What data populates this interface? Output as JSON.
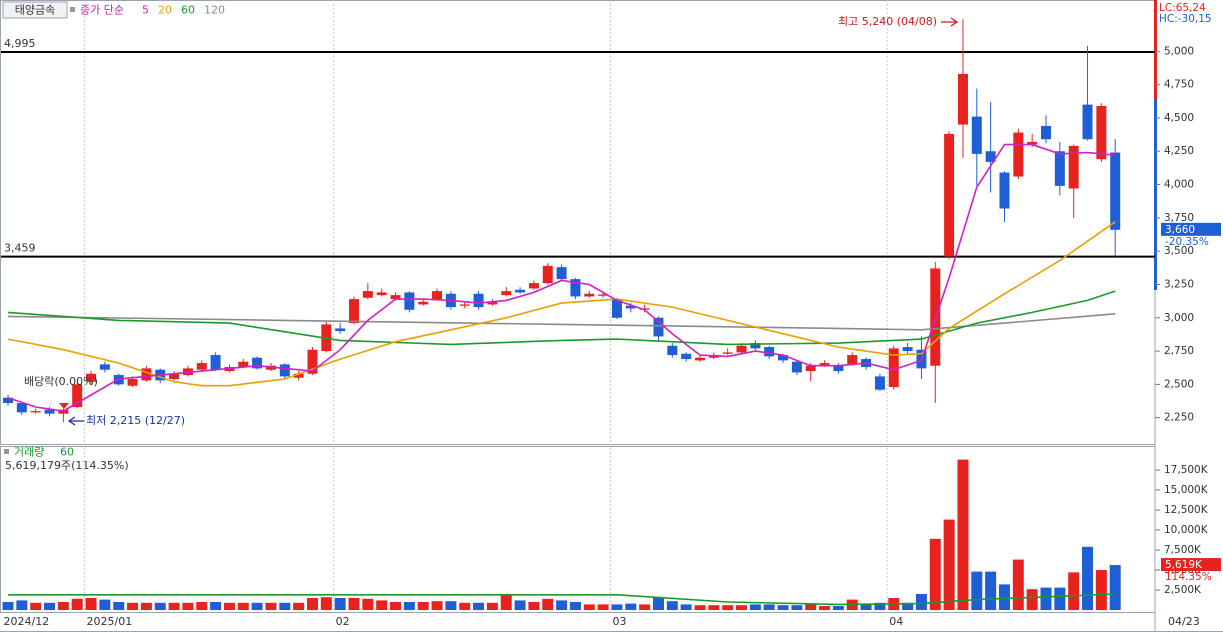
{
  "chart_data": [
    {
      "type": "candlestick",
      "title": "태양금속",
      "legend_title": "종가 단순",
      "indicators": [
        {
          "text": "LC:65,24",
          "color": "#e8231f"
        },
        {
          "text": "HC:-30,15",
          "color": "#1f5fd6"
        }
      ],
      "last_date": "04/23",
      "categories": [
        "2024/12",
        null,
        null,
        null,
        null,
        null,
        "2025/01",
        null,
        null,
        null,
        null,
        null,
        null,
        null,
        null,
        null,
        null,
        null,
        null,
        null,
        null,
        null,
        null,
        null,
        "02",
        null,
        null,
        null,
        null,
        null,
        null,
        null,
        null,
        null,
        null,
        null,
        null,
        null,
        null,
        null,
        null,
        null,
        null,
        null,
        "03",
        null,
        null,
        null,
        null,
        null,
        null,
        null,
        null,
        null,
        null,
        null,
        null,
        null,
        null,
        null,
        null,
        null,
        null,
        null,
        "04",
        null,
        null,
        null,
        null,
        null,
        null,
        null,
        null,
        null,
        null,
        null,
        null,
        null,
        null,
        null,
        null
      ],
      "open": [
        2400,
        2360,
        2290,
        2310,
        2280,
        2330,
        2520,
        2650,
        2570,
        2490,
        2530,
        2610,
        2540,
        2570,
        2610,
        2720,
        2600,
        2630,
        2700,
        2610,
        2650,
        2550,
        2580,
        2750,
        2920,
        2960,
        3150,
        3170,
        3140,
        3190,
        3100,
        3140,
        3180,
        3090,
        3180,
        3100,
        3170,
        3210,
        3220,
        3260,
        3380,
        3290,
        3160,
        3165,
        3140,
        3090,
        3060,
        3000,
        2790,
        2730,
        2680,
        2700,
        2730,
        2740,
        2810,
        2780,
        2720,
        2670,
        2600,
        2640,
        2640,
        2650,
        2690,
        2560,
        2480,
        2780,
        2760,
        2640,
        3460,
        4450,
        4510,
        4250,
        4090,
        4060,
        4300,
        4440,
        4250,
        3970,
        4600,
        4190,
        4240
      ],
      "high": [
        2420,
        2370,
        2320,
        2330,
        2320,
        2510,
        2600,
        2670,
        2580,
        2560,
        2640,
        2620,
        2600,
        2640,
        2680,
        2740,
        2650,
        2690,
        2710,
        2660,
        2660,
        2600,
        2780,
        2970,
        2960,
        3160,
        3260,
        3220,
        3190,
        3200,
        3140,
        3220,
        3200,
        3120,
        3200,
        3140,
        3230,
        3230,
        3280,
        3410,
        3400,
        3300,
        3200,
        3190,
        3150,
        3110,
        3100,
        3010,
        2810,
        2740,
        2720,
        2740,
        2770,
        2810,
        2830,
        2790,
        2730,
        2680,
        2660,
        2680,
        2660,
        2740,
        2700,
        2580,
        2790,
        2810,
        2860,
        3420,
        4400,
        5240,
        4720,
        4620,
        4100,
        4420,
        4380,
        4520,
        4320,
        4300,
        5040,
        4610,
        4340
      ],
      "low": [
        2340,
        2270,
        2280,
        2260,
        2215,
        2320,
        2500,
        2590,
        2490,
        2480,
        2520,
        2510,
        2530,
        2560,
        2600,
        2600,
        2590,
        2620,
        2610,
        2600,
        2540,
        2530,
        2570,
        2740,
        2880,
        2950,
        3140,
        3160,
        3130,
        3040,
        3090,
        3130,
        3060,
        3070,
        3060,
        3090,
        3160,
        3180,
        3210,
        3250,
        3280,
        3140,
        3150,
        3150,
        2990,
        3040,
        3040,
        2830,
        2700,
        2670,
        2670,
        2690,
        2720,
        2730,
        2750,
        2690,
        2660,
        2570,
        2520,
        2630,
        2580,
        2640,
        2610,
        2450,
        2460,
        2720,
        2540,
        2360,
        3440,
        4200,
        3990,
        3940,
        3720,
        4040,
        4280,
        4310,
        3920,
        3750,
        4330,
        4170,
        3459
      ],
      "close": [
        2360,
        2290,
        2300,
        2280,
        2310,
        2500,
        2580,
        2610,
        2500,
        2540,
        2620,
        2530,
        2580,
        2620,
        2660,
        2610,
        2630,
        2670,
        2620,
        2640,
        2560,
        2580,
        2760,
        2950,
        2900,
        3140,
        3200,
        3190,
        3170,
        3060,
        3120,
        3200,
        3080,
        3100,
        3080,
        3120,
        3200,
        3190,
        3260,
        3390,
        3290,
        3160,
        3180,
        3175,
        3000,
        3070,
        3070,
        2860,
        2720,
        2690,
        2700,
        2720,
        2740,
        2790,
        2770,
        2710,
        2680,
        2590,
        2640,
        2660,
        2600,
        2720,
        2630,
        2460,
        2770,
        2750,
        2620,
        3370,
        4380,
        4830,
        4230,
        4170,
        3820,
        4390,
        4320,
        4340,
        3990,
        4290,
        4340,
        4590,
        3660
      ],
      "up_color": "#e8231f",
      "down_color": "#1f5fd6",
      "series": [
        {
          "name": "5",
          "color": "#d21fc6",
          "x": [
            0,
            2,
            4,
            6,
            8,
            10,
            12,
            14,
            16,
            18,
            20,
            22,
            24,
            26,
            28,
            30,
            32,
            34,
            36,
            38,
            40,
            42,
            44,
            46,
            48,
            50,
            52,
            54,
            56,
            58,
            60,
            62,
            64,
            66,
            68,
            70,
            72,
            74,
            76,
            78,
            80
          ],
          "values": [
            2400,
            2330,
            2300,
            2420,
            2540,
            2560,
            2580,
            2600,
            2620,
            2640,
            2620,
            2600,
            2760,
            2980,
            3140,
            3140,
            3130,
            3110,
            3130,
            3190,
            3280,
            3250,
            3130,
            3060,
            2880,
            2720,
            2710,
            2750,
            2720,
            2640,
            2640,
            2660,
            2610,
            2680,
            3300,
            3980,
            4300,
            4300,
            4230,
            4240,
            4220
          ]
        },
        {
          "name": "20",
          "color": "#e8a000",
          "x": [
            0,
            4,
            8,
            12,
            14,
            16,
            20,
            24,
            28,
            32,
            36,
            40,
            44,
            48,
            52,
            56,
            60,
            64,
            66,
            68,
            72,
            76,
            80
          ],
          "values": [
            2840,
            2760,
            2660,
            2520,
            2490,
            2490,
            2540,
            2690,
            2820,
            2910,
            3000,
            3110,
            3140,
            3080,
            2980,
            2880,
            2780,
            2720,
            2730,
            2920,
            3180,
            3430,
            3720
          ]
        },
        {
          "name": "60",
          "color": "#1a9a2a",
          "x": [
            0,
            8,
            16,
            24,
            32,
            40,
            44,
            52,
            60,
            66,
            70,
            74,
            78,
            80
          ],
          "values": [
            3040,
            2980,
            2960,
            2830,
            2800,
            2830,
            2840,
            2800,
            2810,
            2840,
            2960,
            3040,
            3130,
            3200
          ]
        },
        {
          "name": "120",
          "color": "#8a8a8a",
          "x": [
            0,
            20,
            40,
            60,
            66,
            72,
            80
          ],
          "values": [
            3010,
            2980,
            2950,
            2920,
            2910,
            2960,
            3030
          ]
        }
      ],
      "ylim": [
        2060,
        5370
      ],
      "yticks": [
        {
          "value": 2250,
          "label": "2,250"
        },
        {
          "value": 2500,
          "label": "2,500"
        },
        {
          "value": 2750,
          "label": "2,750"
        },
        {
          "value": 3000,
          "label": "3,000"
        },
        {
          "value": 3250,
          "label": "3,250"
        },
        {
          "value": 3500,
          "label": "3,500"
        },
        {
          "value": 3750,
          "label": "3,750"
        },
        {
          "value": 4000,
          "label": "4,000"
        },
        {
          "value": 4250,
          "label": "4,250"
        },
        {
          "value": 4500,
          "label": "4,500"
        },
        {
          "value": 4750,
          "label": "4,750"
        },
        {
          "value": 5000,
          "label": "5,000"
        }
      ],
      "hlines": [
        {
          "value": 4995,
          "label": "4,995"
        },
        {
          "value": 3459,
          "label": "3,459"
        }
      ],
      "annotations": [
        "최고 5,240 (04/08)",
        "최저 2,215 (12/27)",
        "배당락(0.00%)"
      ],
      "last_price": {
        "value": 3660,
        "label": "3,660"
      },
      "change_label": "-20.35%"
    },
    {
      "type": "bar",
      "title": "거래량",
      "subtitle": "5,619,179주(114.35%)",
      "values": [
        1000,
        1200,
        900,
        900,
        1000,
        1400,
        1500,
        1300,
        1000,
        900,
        900,
        900,
        900,
        900,
        1000,
        1000,
        900,
        900,
        900,
        900,
        900,
        900,
        1500,
        1600,
        1500,
        1500,
        1400,
        1200,
        1000,
        1000,
        1000,
        1100,
        1100,
        900,
        900,
        900,
        2000,
        1200,
        1000,
        1400,
        1200,
        1000,
        700,
        700,
        700,
        800,
        700,
        1600,
        1100,
        700,
        600,
        600,
        600,
        600,
        700,
        700,
        600,
        600,
        700,
        500,
        500,
        1300,
        700,
        900,
        1500,
        900,
        2000,
        8900,
        11300,
        18800,
        4800,
        4800,
        3200,
        6300,
        2600,
        2800,
        2800,
        4700,
        7900,
        5000,
        5619
      ],
      "series": [
        {
          "name": "60",
          "color": "#1a9a2a",
          "x": [
            0,
            44,
            52,
            60,
            66,
            70,
            80
          ],
          "values": [
            1900,
            1900,
            1000,
            700,
            800,
            1300,
            2000
          ]
        }
      ],
      "ylim": [
        0,
        20000
      ],
      "yticks": [
        {
          "value": 2500,
          "label": "2,500K"
        },
        {
          "value": 5000,
          "label": "5,000K"
        },
        {
          "value": 7500,
          "label": "7,500K"
        },
        {
          "value": 10000,
          "label": "10,000K"
        },
        {
          "value": 12500,
          "label": "12,500K"
        },
        {
          "value": 15000,
          "label": "15,000K"
        },
        {
          "value": 17500,
          "label": "17,500K"
        }
      ],
      "last_volume": {
        "value": 5619,
        "label": "5,619K"
      },
      "ratio_label": "114.35%"
    }
  ]
}
